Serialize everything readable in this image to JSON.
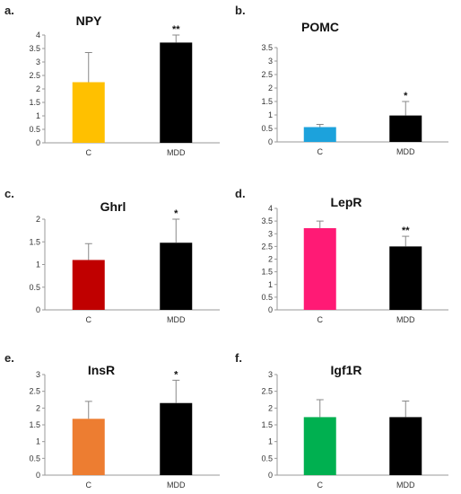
{
  "chart_data": [
    {
      "panel": "a.",
      "type": "bar",
      "title": "NPY",
      "categories": [
        "C",
        "MDD"
      ],
      "values": [
        2.25,
        3.72
      ],
      "errors": [
        1.1,
        0.28
      ],
      "colors": [
        "#FFC000",
        "#000000"
      ],
      "annotations": [
        "",
        "**"
      ],
      "ylim": [
        0,
        4
      ],
      "yticks": [
        "0",
        "0.5",
        "1",
        "1.5",
        "2",
        "2.5",
        "3",
        "3.5",
        "4"
      ],
      "xlabel": "",
      "ylabel": ""
    },
    {
      "panel": "b.",
      "type": "bar",
      "title": "POMC",
      "categories": [
        "C",
        "MDD"
      ],
      "values": [
        0.55,
        0.98
      ],
      "errors": [
        0.1,
        0.52
      ],
      "colors": [
        "#1CA2DC",
        "#000000"
      ],
      "annotations": [
        "",
        "*"
      ],
      "ylim": [
        0,
        3.5
      ],
      "yticks": [
        "0",
        "0.5",
        "1",
        "1.5",
        "2",
        "2.5",
        "3",
        "3.5"
      ],
      "xlabel": "",
      "ylabel": ""
    },
    {
      "panel": "c.",
      "type": "bar",
      "title": "Ghrl",
      "categories": [
        "C",
        "MDD"
      ],
      "values": [
        1.1,
        1.48
      ],
      "errors": [
        0.36,
        0.52
      ],
      "colors": [
        "#C00000",
        "#000000"
      ],
      "annotations": [
        "",
        "*"
      ],
      "ylim": [
        0,
        2
      ],
      "yticks": [
        "0",
        "0.5",
        "1",
        "1.5",
        "2"
      ],
      "xlabel": "",
      "ylabel": ""
    },
    {
      "panel": "d.",
      "type": "bar",
      "title": "LepR",
      "categories": [
        "C",
        "MDD"
      ],
      "values": [
        3.22,
        2.5
      ],
      "errors": [
        0.28,
        0.4
      ],
      "colors": [
        "#FF1A75",
        "#000000"
      ],
      "annotations": [
        "",
        "**"
      ],
      "ylim": [
        0,
        4
      ],
      "yticks": [
        "0",
        "0.5",
        "1",
        "1.5",
        "2",
        "2.5",
        "3",
        "3.5",
        "4"
      ],
      "xlabel": "",
      "ylabel": ""
    },
    {
      "panel": "e.",
      "type": "bar",
      "title": "InsR",
      "categories": [
        "C",
        "MDD"
      ],
      "values": [
        1.68,
        2.15
      ],
      "errors": [
        0.52,
        0.68
      ],
      "colors": [
        "#ED7D31",
        "#000000"
      ],
      "annotations": [
        "",
        "*"
      ],
      "ylim": [
        0,
        3
      ],
      "yticks": [
        "0",
        "0.5",
        "1",
        "1.5",
        "2",
        "2.5",
        "3"
      ],
      "xlabel": "",
      "ylabel": ""
    },
    {
      "panel": "f.",
      "type": "bar",
      "title": "Igf1R",
      "categories": [
        "C",
        "MDD"
      ],
      "values": [
        1.73,
        1.73
      ],
      "errors": [
        0.52,
        0.48
      ],
      "colors": [
        "#00B050",
        "#000000"
      ],
      "annotations": [
        "",
        ""
      ],
      "ylim": [
        0,
        3
      ],
      "yticks": [
        "0",
        "0.5",
        "1",
        "1.5",
        "2",
        "2.5",
        "3"
      ],
      "xlabel": "",
      "ylabel": ""
    }
  ]
}
